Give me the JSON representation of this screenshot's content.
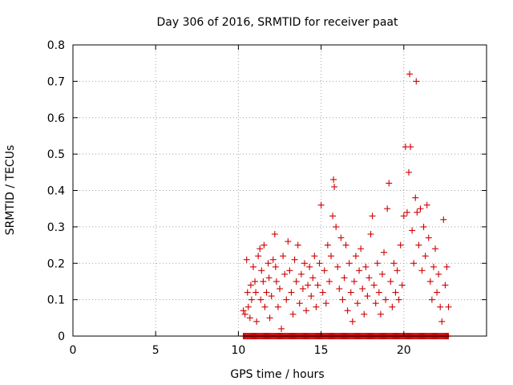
{
  "chart_data": {
    "type": "scatter",
    "title": "Day 306 of 2016, SRMTID for receiver paat",
    "xlabel": "GPS time / hours",
    "ylabel": "SRMTID / TECUs",
    "xlim": [
      0,
      25
    ],
    "ylim": [
      0,
      0.8
    ],
    "xticks": [
      0,
      5,
      10,
      15,
      20
    ],
    "yticks": [
      0,
      0.1,
      0.2,
      0.3,
      0.4,
      0.5,
      0.6,
      0.7,
      0.8
    ],
    "xtick_labels": [
      "0",
      "5",
      "10",
      "15",
      "20"
    ],
    "ytick_labels": [
      "0",
      "0.1",
      "0.2",
      "0.3",
      "0.4",
      "0.5",
      "0.6",
      "0.7",
      "0.8"
    ],
    "grid": true,
    "marker": "+",
    "marker_color": "#cc0000",
    "series": [
      {
        "name": "SRMTID",
        "zero_baseline_range": [
          10.3,
          22.7
        ],
        "points": [
          [
            10.3,
            0.07
          ],
          [
            10.4,
            0.06
          ],
          [
            10.5,
            0.21
          ],
          [
            10.55,
            0.12
          ],
          [
            10.6,
            0.08
          ],
          [
            10.7,
            0.05
          ],
          [
            10.75,
            0.14
          ],
          [
            10.8,
            0.1
          ],
          [
            10.9,
            0.19
          ],
          [
            11.0,
            0.15
          ],
          [
            11.05,
            0.12
          ],
          [
            11.1,
            0.04
          ],
          [
            11.2,
            0.22
          ],
          [
            11.3,
            0.24
          ],
          [
            11.35,
            0.1
          ],
          [
            11.4,
            0.18
          ],
          [
            11.5,
            0.15
          ],
          [
            11.55,
            0.25
          ],
          [
            11.6,
            0.08
          ],
          [
            11.7,
            0.12
          ],
          [
            11.8,
            0.2
          ],
          [
            11.85,
            0.16
          ],
          [
            11.9,
            0.05
          ],
          [
            12.0,
            0.11
          ],
          [
            12.1,
            0.21
          ],
          [
            12.2,
            0.28
          ],
          [
            12.25,
            0.19
          ],
          [
            12.3,
            0.15
          ],
          [
            12.4,
            0.08
          ],
          [
            12.5,
            0.13
          ],
          [
            12.6,
            0.02
          ],
          [
            12.7,
            0.22
          ],
          [
            12.8,
            0.17
          ],
          [
            12.9,
            0.1
          ],
          [
            13.0,
            0.26
          ],
          [
            13.1,
            0.18
          ],
          [
            13.2,
            0.12
          ],
          [
            13.3,
            0.06
          ],
          [
            13.4,
            0.21
          ],
          [
            13.5,
            0.15
          ],
          [
            13.6,
            0.25
          ],
          [
            13.7,
            0.09
          ],
          [
            13.8,
            0.17
          ],
          [
            13.9,
            0.13
          ],
          [
            14.0,
            0.2
          ],
          [
            14.1,
            0.07
          ],
          [
            14.2,
            0.14
          ],
          [
            14.3,
            0.19
          ],
          [
            14.4,
            0.11
          ],
          [
            14.5,
            0.16
          ],
          [
            14.6,
            0.22
          ],
          [
            14.7,
            0.08
          ],
          [
            14.8,
            0.14
          ],
          [
            14.9,
            0.2
          ],
          [
            15.0,
            0.36
          ],
          [
            15.1,
            0.12
          ],
          [
            15.2,
            0.18
          ],
          [
            15.3,
            0.09
          ],
          [
            15.4,
            0.25
          ],
          [
            15.5,
            0.15
          ],
          [
            15.6,
            0.22
          ],
          [
            15.7,
            0.33
          ],
          [
            15.75,
            0.43
          ],
          [
            15.8,
            0.41
          ],
          [
            15.9,
            0.3
          ],
          [
            16.0,
            0.19
          ],
          [
            16.1,
            0.13
          ],
          [
            16.2,
            0.27
          ],
          [
            16.3,
            0.1
          ],
          [
            16.4,
            0.16
          ],
          [
            16.5,
            0.25
          ],
          [
            16.6,
            0.07
          ],
          [
            16.7,
            0.2
          ],
          [
            16.8,
            0.12
          ],
          [
            16.9,
            0.04
          ],
          [
            17.0,
            0.15
          ],
          [
            17.1,
            0.22
          ],
          [
            17.2,
            0.09
          ],
          [
            17.3,
            0.18
          ],
          [
            17.4,
            0.24
          ],
          [
            17.5,
            0.13
          ],
          [
            17.6,
            0.06
          ],
          [
            17.7,
            0.19
          ],
          [
            17.8,
            0.11
          ],
          [
            17.9,
            0.16
          ],
          [
            18.0,
            0.28
          ],
          [
            18.1,
            0.33
          ],
          [
            18.2,
            0.14
          ],
          [
            18.3,
            0.09
          ],
          [
            18.4,
            0.2
          ],
          [
            18.5,
            0.12
          ],
          [
            18.6,
            0.06
          ],
          [
            18.7,
            0.17
          ],
          [
            18.8,
            0.23
          ],
          [
            18.9,
            0.1
          ],
          [
            19.0,
            0.35
          ],
          [
            19.1,
            0.42
          ],
          [
            19.2,
            0.15
          ],
          [
            19.3,
            0.08
          ],
          [
            19.4,
            0.2
          ],
          [
            19.5,
            0.12
          ],
          [
            19.6,
            0.18
          ],
          [
            19.7,
            0.1
          ],
          [
            19.8,
            0.25
          ],
          [
            19.9,
            0.14
          ],
          [
            20.0,
            0.33
          ],
          [
            20.1,
            0.52
          ],
          [
            20.2,
            0.34
          ],
          [
            20.3,
            0.45
          ],
          [
            20.35,
            0.72
          ],
          [
            20.4,
            0.52
          ],
          [
            20.5,
            0.29
          ],
          [
            20.6,
            0.2
          ],
          [
            20.7,
            0.38
          ],
          [
            20.75,
            0.7
          ],
          [
            20.8,
            0.34
          ],
          [
            20.9,
            0.25
          ],
          [
            21.0,
            0.35
          ],
          [
            21.1,
            0.18
          ],
          [
            21.2,
            0.3
          ],
          [
            21.3,
            0.22
          ],
          [
            21.4,
            0.36
          ],
          [
            21.5,
            0.27
          ],
          [
            21.6,
            0.15
          ],
          [
            21.7,
            0.1
          ],
          [
            21.8,
            0.19
          ],
          [
            21.9,
            0.24
          ],
          [
            22.0,
            0.12
          ],
          [
            22.1,
            0.17
          ],
          [
            22.2,
            0.08
          ],
          [
            22.3,
            0.04
          ],
          [
            22.4,
            0.32
          ],
          [
            22.5,
            0.14
          ],
          [
            22.6,
            0.19
          ],
          [
            22.7,
            0.08
          ]
        ]
      }
    ]
  }
}
